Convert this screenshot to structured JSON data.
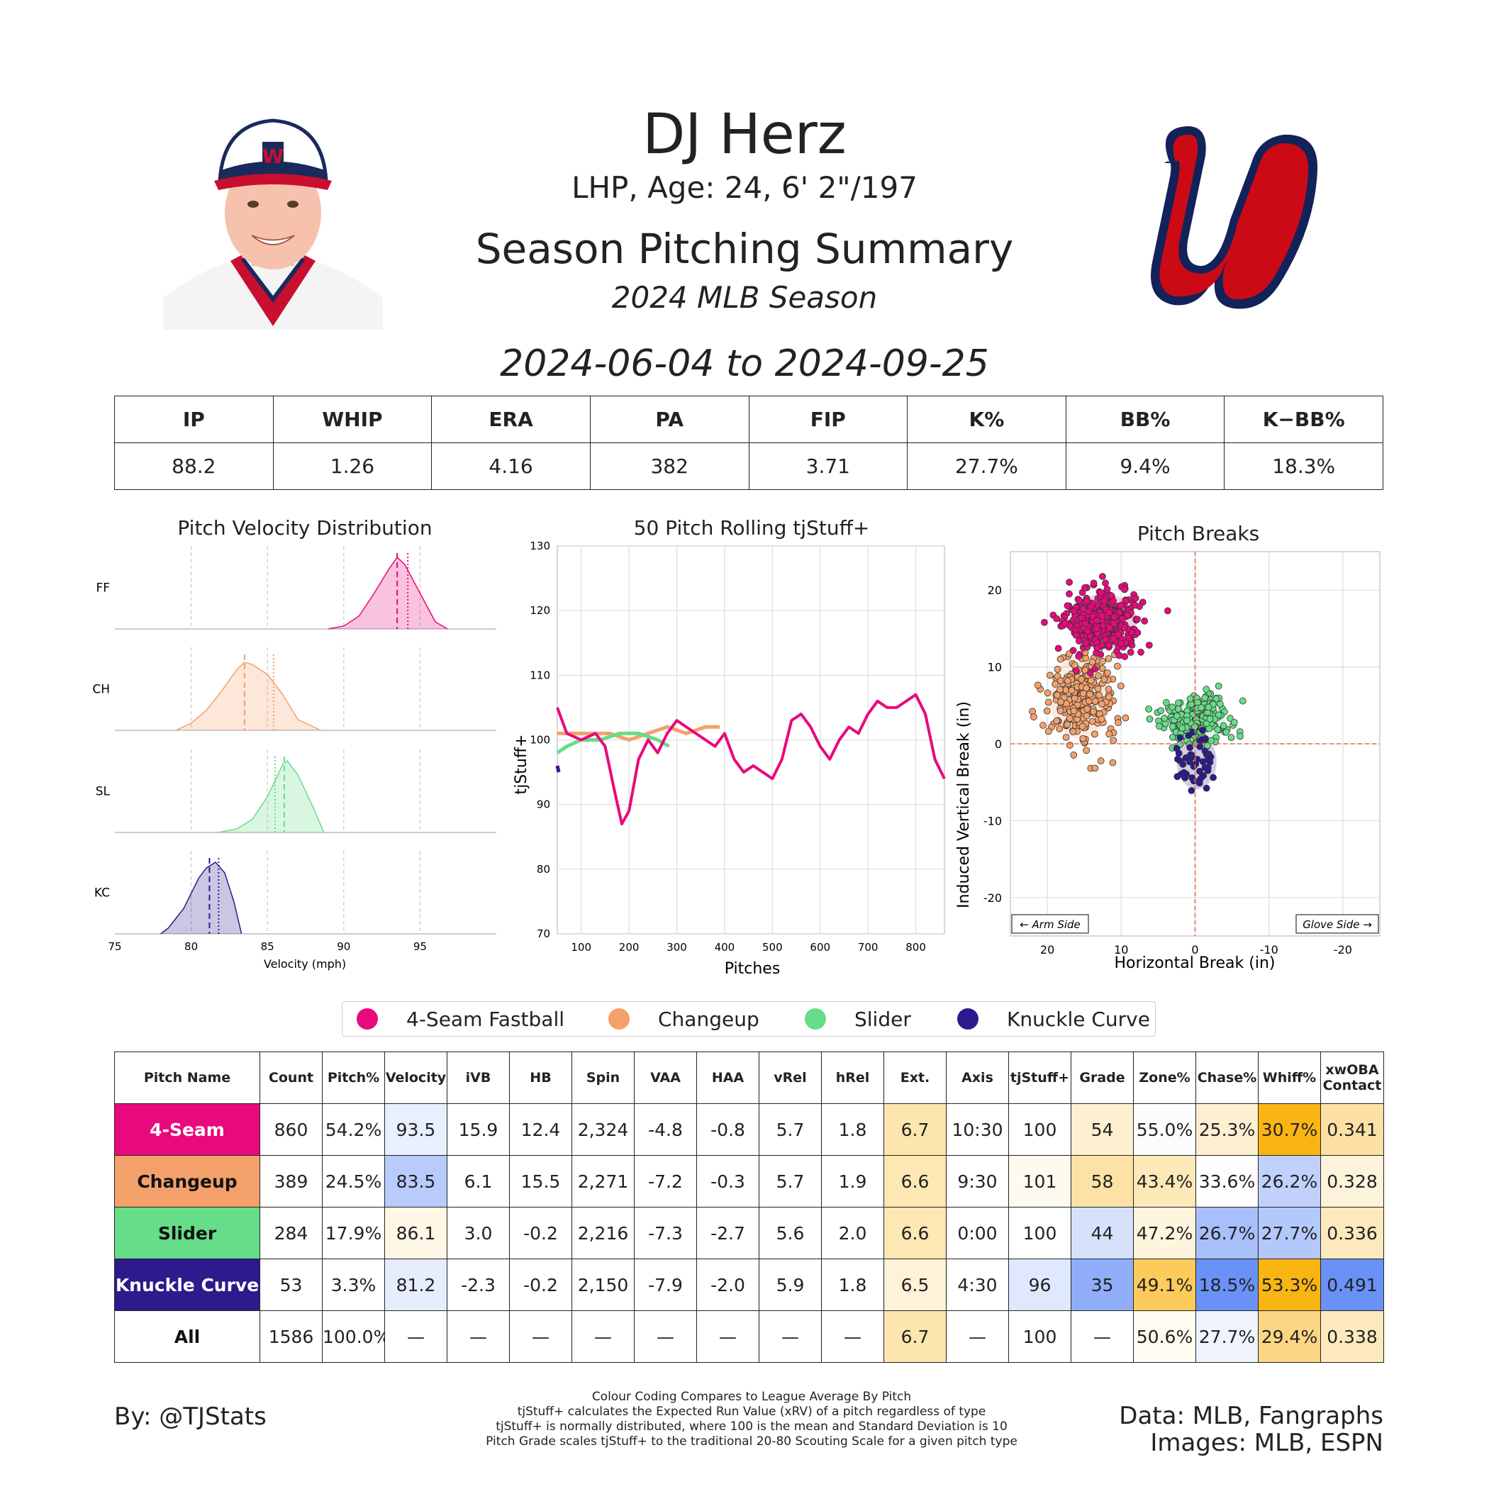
{
  "header": {
    "name": "DJ Herz",
    "bio": "LHP, Age: 24, 6' 2\"/197",
    "title": "Season Pitching Summary",
    "season": "2024 MLB Season",
    "date_range": "2024-06-04 to 2024-09-25"
  },
  "colors": {
    "FF": "#e80a7c",
    "CH": "#f4a06b",
    "SL": "#66dd88",
    "KC": "#2e1a8c",
    "team_red": "#cc0a15",
    "team_navy": "#14225a"
  },
  "summary_stats": {
    "headers": [
      "IP",
      "WHIP",
      "ERA",
      "PA",
      "FIP",
      "K%",
      "BB%",
      "K−BB%"
    ],
    "values": [
      "88.2",
      "1.26",
      "4.16",
      "382",
      "3.71",
      "27.7%",
      "9.4%",
      "18.3%"
    ]
  },
  "chart_data": [
    {
      "type": "area",
      "title": "Pitch Velocity Distribution",
      "xlabel": "Velocity (mph)",
      "xlim": [
        75,
        100
      ],
      "xticks": [
        "75",
        "80",
        "85",
        "90",
        "95"
      ],
      "series": [
        {
          "name": "FF",
          "mean": 93.5,
          "league_avg": 94.2,
          "x": [
            89.0,
            90,
            91,
            92,
            93,
            93.5,
            94,
            95,
            96,
            96.8
          ],
          "density": [
            0.0,
            0.04,
            0.18,
            0.5,
            0.85,
            1.0,
            0.9,
            0.5,
            0.1,
            0.0
          ]
        },
        {
          "name": "CH",
          "mean": 83.5,
          "league_avg": 85.4,
          "x": [
            79.0,
            80,
            81,
            82,
            83,
            83.5,
            84,
            85,
            86,
            87,
            88.5
          ],
          "density": [
            0.0,
            0.1,
            0.28,
            0.55,
            0.85,
            0.95,
            0.92,
            0.78,
            0.5,
            0.15,
            0.0
          ]
        },
        {
          "name": "SL",
          "mean": 86.1,
          "league_avg": 85.5,
          "x": [
            81.8,
            83,
            84,
            85,
            86,
            86.3,
            87,
            88,
            88.7
          ],
          "density": [
            0.0,
            0.05,
            0.18,
            0.5,
            0.95,
            1.0,
            0.8,
            0.35,
            0.0
          ]
        },
        {
          "name": "KC",
          "mean": 81.2,
          "league_avg": 81.8,
          "x": [
            78.0,
            78.5,
            79.5,
            80.5,
            81,
            81.6,
            82.2,
            82.8,
            83.3
          ],
          "density": [
            0.0,
            0.08,
            0.35,
            0.78,
            0.92,
            1.0,
            0.85,
            0.45,
            0.0
          ]
        }
      ]
    },
    {
      "type": "line",
      "title": "50 Pitch Rolling tjStuff+",
      "xlabel": "Pitches",
      "ylabel": "tjStuff+",
      "xlim": [
        50,
        860
      ],
      "ylim": [
        70,
        130
      ],
      "xticks": [
        "100",
        "200",
        "300",
        "400",
        "500",
        "600",
        "700",
        "800"
      ],
      "yticks": [
        "70",
        "80",
        "90",
        "100",
        "110",
        "120",
        "130"
      ],
      "series": [
        {
          "name": "FF",
          "x": [
            50,
            70,
            100,
            130,
            150,
            170,
            185,
            200,
            220,
            240,
            260,
            280,
            300,
            320,
            340,
            360,
            380,
            400,
            420,
            440,
            460,
            480,
            500,
            520,
            540,
            560,
            580,
            600,
            620,
            640,
            660,
            680,
            700,
            720,
            740,
            760,
            780,
            800,
            820,
            840,
            860
          ],
          "y": [
            105,
            101,
            100,
            101,
            99,
            92,
            87,
            89,
            97,
            100,
            98,
            101,
            103,
            102,
            101,
            100,
            99,
            101,
            97,
            95,
            96,
            95,
            94,
            97,
            103,
            104,
            102,
            99,
            97,
            100,
            102,
            101,
            104,
            106,
            105,
            105,
            106,
            107,
            104,
            97,
            94
          ]
        },
        {
          "name": "CH",
          "x": [
            50,
            80,
            120,
            160,
            200,
            240,
            280,
            320,
            360,
            390
          ],
          "y": [
            101,
            101,
            101,
            101,
            100,
            101,
            102,
            101,
            102,
            102
          ]
        },
        {
          "name": "SL",
          "x": [
            50,
            70,
            100,
            140,
            180,
            220,
            260,
            284
          ],
          "y": [
            98,
            99,
            100,
            100,
            101,
            101,
            100,
            99
          ]
        },
        {
          "name": "KC",
          "x": [
            50,
            53
          ],
          "y": [
            96,
            95
          ]
        }
      ]
    },
    {
      "type": "scatter",
      "title": "Pitch Breaks",
      "xlabel": "Horizontal Break (in)",
      "ylabel": "Induced Vertical Break (in)",
      "xlim": [
        25,
        -25
      ],
      "ylim": [
        -25,
        25
      ],
      "xticks": [
        "20",
        "10",
        "0",
        "-10",
        "-20"
      ],
      "yticks": [
        "20",
        "10",
        "0",
        "-10",
        "-20"
      ],
      "annotations": [
        "← Arm Side",
        "Glove Side →"
      ],
      "series": [
        {
          "name": "FF",
          "cx": 12.4,
          "cy": 15.9,
          "sx": 2.5,
          "sy": 2.0,
          "n": 420
        },
        {
          "name": "CH",
          "cx": 15.5,
          "cy": 6.1,
          "sx": 2.3,
          "sy": 3.0,
          "n": 260
        },
        {
          "name": "SL",
          "cx": -0.2,
          "cy": 3.0,
          "sx": 2.2,
          "sy": 1.8,
          "n": 220
        },
        {
          "name": "KC",
          "cx": -0.2,
          "cy": -2.3,
          "sx": 1.5,
          "sy": 2.0,
          "n": 50
        }
      ]
    }
  ],
  "legend": [
    "4-Seam Fastball",
    "Changeup",
    "Slider",
    "Knuckle Curve"
  ],
  "pitch_table": {
    "headers": [
      "Pitch Name",
      "Count",
      "Pitch%",
      "Velocity",
      "iVB",
      "HB",
      "Spin",
      "VAA",
      "HAA",
      "vRel",
      "hRel",
      "Ext.",
      "Axis",
      "tjStuff+",
      "Grade",
      "Zone%",
      "Chase%",
      "Whiff%",
      "xwOBA Contact"
    ],
    "rows": [
      {
        "name": "4-Seam",
        "key": "FF",
        "cells": [
          "860",
          "54.2%",
          "93.5",
          "15.9",
          "12.4",
          "2,324",
          "-4.8",
          "-0.8",
          "5.7",
          "1.8",
          "6.7",
          "10:30",
          "100",
          "54",
          "55.0%",
          "25.3%",
          "30.7%",
          "0.341"
        ],
        "shades": [
          "",
          "",
          "#e8effe",
          "",
          "",
          "",
          "",
          "",
          "",
          "",
          "#fde6ad",
          "",
          "",
          "#fdf0d1",
          "#fbfcfe",
          "#fdf0d1",
          "#f9b512",
          "#fde0a3"
        ]
      },
      {
        "name": "Changeup",
        "key": "CH",
        "cells": [
          "389",
          "24.5%",
          "83.5",
          "6.1",
          "15.5",
          "2,271",
          "-7.2",
          "-0.3",
          "5.7",
          "1.9",
          "6.6",
          "9:30",
          "101",
          "58",
          "43.4%",
          "33.6%",
          "26.2%",
          "0.328"
        ],
        "shades": [
          "",
          "",
          "#b8cbfb",
          "",
          "",
          "",
          "",
          "",
          "",
          "",
          "#fde7b2",
          "",
          "#fffaf0",
          "#fde2a6",
          "#fde9b7",
          "#fefefe",
          "#c1d1fb",
          "#fdf3da"
        ]
      },
      {
        "name": "Slider",
        "key": "SL",
        "cells": [
          "284",
          "17.9%",
          "86.1",
          "3.0",
          "-0.2",
          "2,216",
          "-7.3",
          "-2.7",
          "5.6",
          "2.0",
          "6.6",
          "0:00",
          "100",
          "44",
          "47.2%",
          "26.7%",
          "27.7%",
          "0.336"
        ],
        "shades": [
          "",
          "",
          "#fff7e6",
          "",
          "",
          "",
          "",
          "",
          "",
          "",
          "#fde7b2",
          "",
          "",
          "#d6e1fc",
          "#fff5de",
          "#a8bffa",
          "#b3c8fb",
          "#fde9bd"
        ]
      },
      {
        "name": "Knuckle Curve",
        "key": "KC",
        "cells": [
          "53",
          "3.3%",
          "81.2",
          "-2.3",
          "-0.2",
          "2,150",
          "-7.9",
          "-2.0",
          "5.9",
          "1.8",
          "6.5",
          "4:30",
          "96",
          "35",
          "49.1%",
          "18.5%",
          "53.3%",
          "0.491"
        ],
        "shades": [
          "",
          "",
          "#e6edfd",
          "",
          "",
          "",
          "",
          "",
          "",
          "",
          "#fef2d8",
          "",
          "#dfe8fd",
          "#8fadf8",
          "#fdcb5b",
          "#6a92f6",
          "#f9b512",
          "#6a92f6"
        ]
      },
      {
        "name": "All",
        "key": "ALL",
        "cells": [
          "1586",
          "100.0%",
          "—",
          "—",
          "—",
          "—",
          "—",
          "—",
          "—",
          "—",
          "6.7",
          "—",
          "100",
          "—",
          "50.6%",
          "27.7%",
          "29.4%",
          "0.338"
        ],
        "shades": [
          "",
          "",
          "",
          "",
          "",
          "",
          "",
          "",
          "",
          "",
          "#fde6ad",
          "",
          "",
          "",
          "#fffbf1",
          "#eef3fe",
          "#fcd685",
          "#fde9bd"
        ]
      }
    ]
  },
  "footer": {
    "by": "By: @TJStats",
    "notes": [
      "Colour Coding Compares to League Average By Pitch",
      "tjStuff+ calculates the Expected Run Value (xRV) of a pitch regardless of type",
      "tjStuff+ is normally distributed, where 100 is the mean and Standard Deviation is 10",
      "Pitch Grade scales tjStuff+ to the traditional 20-80 Scouting Scale for a given pitch type"
    ],
    "data_source": "Data: MLB, Fangraphs",
    "image_source": "Images: MLB, ESPN"
  }
}
